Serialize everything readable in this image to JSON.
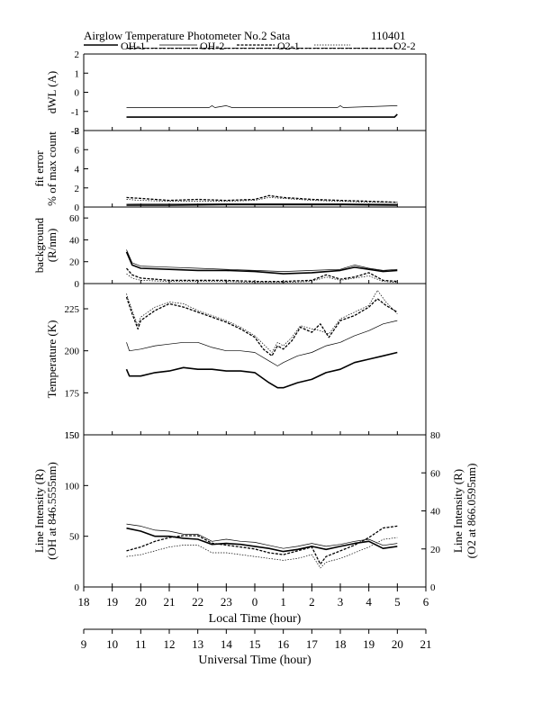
{
  "header": {
    "title": "Airglow Temperature Photometer No.2  Sata",
    "date_code": "110401"
  },
  "legend": {
    "entries": [
      {
        "label": "OH-1",
        "style": "solid-thick"
      },
      {
        "label": "OH-2",
        "style": "solid-thin"
      },
      {
        "label": "O2-1",
        "style": "dashed-thick"
      },
      {
        "label": "O2-2",
        "style": "dotted-thin"
      }
    ],
    "placement": "top"
  },
  "chart_data": [
    {
      "type": "line",
      "ylabel": "dWL (A)",
      "ylim": [
        -2,
        2
      ],
      "yticks": [
        "2",
        "1",
        "0",
        "-1",
        "-2"
      ],
      "series": [
        {
          "name": "OH-1",
          "x": [
            10.5,
            19.9,
            20.0
          ],
          "y": [
            -1.3,
            -1.3,
            -1.15
          ]
        },
        {
          "name": "OH-2",
          "x": [
            10.5,
            13.4,
            13.5,
            13.6,
            14.0,
            14.2,
            14.5,
            17.9,
            18.0,
            18.1,
            20.0
          ],
          "y": [
            -0.8,
            -0.8,
            -0.7,
            -0.8,
            -0.7,
            -0.8,
            -0.8,
            -0.8,
            -0.7,
            -0.8,
            -0.7
          ]
        },
        {
          "name": "O2-1",
          "x": [
            10.5,
            20.0
          ],
          "y": [
            2.3,
            2.3
          ]
        },
        {
          "name": "O2-2",
          "x": [
            10.5,
            20.0
          ],
          "y": [
            2.3,
            2.3
          ]
        }
      ]
    },
    {
      "type": "line",
      "ylabel": "fit error",
      "ylabel2": "% of max count",
      "ylim": [
        0,
        8
      ],
      "yticks": [
        "8",
        "6",
        "4",
        "2",
        "0"
      ],
      "series": [
        {
          "name": "OH-1",
          "x": [
            10.5,
            12,
            14,
            16,
            18,
            20
          ],
          "y": [
            0.2,
            0.2,
            0.25,
            0.25,
            0.25,
            0.2
          ]
        },
        {
          "name": "OH-2",
          "x": [
            10.5,
            12,
            14,
            16,
            18,
            20
          ],
          "y": [
            0.3,
            0.35,
            0.35,
            0.35,
            0.35,
            0.3
          ]
        },
        {
          "name": "O2-1",
          "x": [
            10.5,
            11,
            12,
            13,
            14,
            15,
            15.5,
            16,
            16.5,
            17,
            18,
            19,
            20
          ],
          "y": [
            1.0,
            0.9,
            0.7,
            0.8,
            0.7,
            0.8,
            1.2,
            1.0,
            0.9,
            0.8,
            0.7,
            0.6,
            0.5
          ]
        },
        {
          "name": "O2-2",
          "x": [
            10.5,
            11,
            12,
            13,
            14,
            15,
            15.5,
            16,
            16.5,
            17,
            18,
            19,
            20
          ],
          "y": [
            0.8,
            0.7,
            0.6,
            0.6,
            0.6,
            0.7,
            1.0,
            0.9,
            0.8,
            0.7,
            0.6,
            0.5,
            0.5
          ]
        }
      ]
    },
    {
      "type": "line",
      "ylabel": "background",
      "ylabel2": "(R/nm)",
      "ylim": [
        0,
        70
      ],
      "yticks": [
        "60",
        "40",
        "20",
        "0"
      ],
      "series": [
        {
          "name": "OH-1",
          "x": [
            10.5,
            10.7,
            11,
            12,
            13,
            14,
            15,
            16,
            17,
            18,
            18.5,
            19,
            19.5,
            20
          ],
          "y": [
            29,
            17,
            14,
            13,
            12,
            12,
            11,
            9,
            10,
            12,
            15,
            13,
            11,
            12
          ]
        },
        {
          "name": "OH-2",
          "x": [
            10.5,
            10.7,
            11,
            12,
            13,
            14,
            15,
            16,
            17,
            18,
            18.5,
            19,
            19.5,
            20
          ],
          "y": [
            31,
            19,
            16,
            15,
            14,
            13,
            12,
            11,
            12,
            13,
            17,
            14,
            12,
            13
          ]
        },
        {
          "name": "O2-1",
          "x": [
            10.5,
            10.7,
            11,
            12,
            13,
            14,
            15,
            16,
            17,
            17.5,
            18,
            18.5,
            19,
            19.5,
            20
          ],
          "y": [
            14,
            8,
            5,
            3,
            3,
            3,
            2,
            2,
            3,
            8,
            4,
            6,
            10,
            3,
            2
          ]
        },
        {
          "name": "O2-2",
          "x": [
            10.5,
            10.7,
            11,
            12,
            13,
            14,
            15,
            16,
            17,
            17.5,
            18,
            19,
            19.5,
            20
          ],
          "y": [
            9,
            5,
            3,
            2,
            2,
            2,
            1,
            1,
            2,
            6,
            3,
            7,
            2,
            1
          ]
        }
      ]
    },
    {
      "type": "line",
      "ylabel": "Temperature (K)",
      "ylim": [
        150,
        240
      ],
      "yticks": [
        "225",
        "200",
        "175",
        "150"
      ],
      "series": [
        {
          "name": "OH-1",
          "x": [
            10.5,
            10.6,
            11.0,
            11.5,
            12.0,
            12.5,
            13.0,
            13.5,
            14.0,
            14.5,
            15.0,
            15.5,
            15.8,
            16.0,
            16.5,
            17.0,
            17.5,
            18.0,
            18.5,
            19.0,
            19.5,
            20.0
          ],
          "y": [
            189,
            185,
            185,
            187,
            188,
            190,
            189,
            189,
            188,
            188,
            187,
            181,
            178,
            178,
            181,
            183,
            187,
            189,
            193,
            195,
            197,
            199
          ]
        },
        {
          "name": "OH-2",
          "x": [
            10.5,
            10.6,
            11.0,
            11.5,
            12.0,
            12.5,
            13.0,
            13.5,
            14.0,
            14.5,
            15.0,
            15.5,
            15.8,
            16.0,
            16.5,
            17.0,
            17.5,
            18.0,
            18.5,
            19.0,
            19.5,
            20.0
          ],
          "y": [
            205,
            200,
            201,
            203,
            204,
            205,
            205,
            202,
            200,
            200,
            199,
            194,
            191,
            193,
            197,
            199,
            203,
            205,
            209,
            212,
            216,
            218
          ]
        },
        {
          "name": "O2-1",
          "x": [
            10.5,
            10.7,
            10.9,
            11.0,
            11.5,
            12.0,
            12.5,
            13.0,
            13.5,
            14.0,
            14.5,
            15.0,
            15.3,
            15.6,
            15.8,
            16.0,
            16.3,
            16.6,
            17.0,
            17.3,
            17.6,
            18.0,
            18.5,
            19.0,
            19.3,
            19.6,
            20.0
          ],
          "y": [
            232,
            222,
            213,
            218,
            224,
            228,
            226,
            223,
            220,
            217,
            213,
            208,
            201,
            197,
            203,
            201,
            206,
            214,
            211,
            216,
            208,
            218,
            221,
            226,
            231,
            227,
            223
          ]
        },
        {
          "name": "O2-2",
          "x": [
            10.5,
            10.7,
            10.9,
            11.0,
            11.5,
            12.0,
            12.5,
            13.0,
            13.5,
            14.0,
            14.5,
            15.0,
            15.3,
            15.6,
            15.8,
            16.0,
            16.3,
            16.6,
            17.0,
            17.3,
            17.6,
            18.0,
            18.5,
            19.0,
            19.3,
            19.6,
            20.0
          ],
          "y": [
            234,
            224,
            215,
            220,
            226,
            229,
            228,
            224,
            221,
            218,
            214,
            209,
            204,
            199,
            205,
            203,
            208,
            215,
            213,
            212,
            210,
            219,
            223,
            227,
            236,
            229,
            222
          ]
        }
      ]
    },
    {
      "type": "line",
      "ylabel": "Line Intensity (R)",
      "ylabel2": "(OH at 846.5555nm)",
      "ylabel_right": "Line Intensity (R)",
      "ylabel_right2": "(O2 at 866.0595nm)",
      "ylim": [
        0,
        150
      ],
      "ylim_right": [
        0,
        80
      ],
      "yticks": [
        "150",
        "100",
        "50",
        "0"
      ],
      "yticks_right": [
        "80",
        "60",
        "40",
        "20",
        "0"
      ],
      "xlabel": "Local Time (hour)",
      "xticks": [
        "18",
        "19",
        "20",
        "21",
        "22",
        "23",
        "0",
        "1",
        "2",
        "3",
        "4",
        "5",
        "6"
      ],
      "xlabel2": "Universal Time (hour)",
      "xticks2": [
        "9",
        "10",
        "11",
        "12",
        "13",
        "14",
        "15",
        "16",
        "17",
        "18",
        "19",
        "20",
        "21"
      ],
      "series": [
        {
          "name": "OH-1",
          "axis": "left",
          "x": [
            10.5,
            11,
            11.5,
            12,
            12.5,
            13,
            13.5,
            14,
            14.5,
            15,
            15.5,
            16,
            16.5,
            17,
            17.5,
            18,
            18.5,
            19,
            19.5,
            20
          ],
          "y": [
            58,
            55,
            50,
            50,
            48,
            47,
            42,
            43,
            42,
            40,
            38,
            35,
            37,
            40,
            37,
            40,
            43,
            45,
            38,
            40
          ]
        },
        {
          "name": "OH-2",
          "axis": "left",
          "x": [
            10.5,
            11,
            11.5,
            12,
            12.5,
            13,
            13.5,
            14,
            14.5,
            15,
            15.5,
            16,
            16.5,
            17,
            17.5,
            18,
            18.5,
            19,
            19.5,
            20
          ],
          "y": [
            62,
            60,
            56,
            55,
            52,
            52,
            45,
            47,
            45,
            44,
            41,
            38,
            40,
            43,
            40,
            42,
            45,
            47,
            41,
            43
          ]
        },
        {
          "name": "O2-1",
          "axis": "right",
          "x": [
            10.5,
            11,
            11.5,
            12,
            12.5,
            13,
            13.5,
            14,
            14.5,
            15,
            15.5,
            16,
            16.5,
            17,
            17.3,
            17.5,
            18,
            18.5,
            19,
            19.5,
            20
          ],
          "y": [
            19,
            21,
            24,
            26,
            27,
            27,
            23,
            22,
            21,
            20,
            18,
            17,
            19,
            21,
            12,
            16,
            19,
            22,
            26,
            31,
            32
          ]
        },
        {
          "name": "O2-2",
          "axis": "right",
          "x": [
            10.5,
            11,
            11.5,
            12,
            12.5,
            13,
            13.5,
            14,
            14.5,
            15,
            15.5,
            16,
            16.5,
            17,
            17.3,
            17.5,
            18,
            18.5,
            19,
            19.5,
            20
          ],
          "y": [
            16,
            17,
            19,
            21,
            22,
            22,
            18,
            18,
            17,
            16,
            15,
            14,
            15,
            17,
            10,
            13,
            15,
            18,
            21,
            25,
            26
          ]
        }
      ]
    }
  ]
}
